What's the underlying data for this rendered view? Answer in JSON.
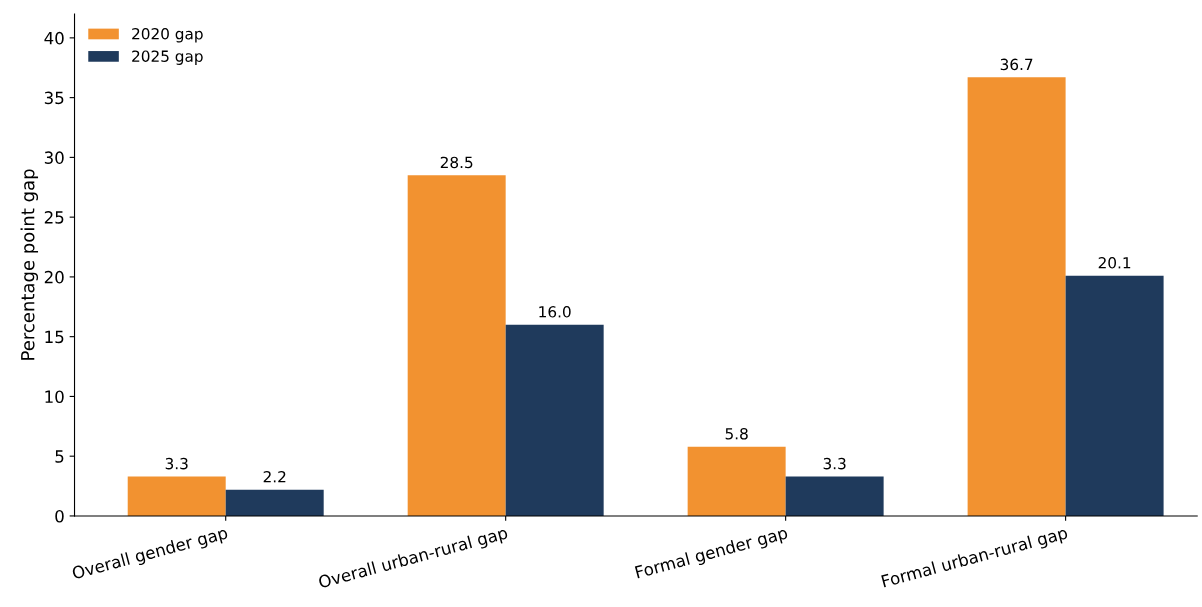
{
  "chart_data": {
    "type": "bar",
    "ylabel": "Percentage point gap",
    "categories": [
      "Overall gender gap",
      "Overall urban-rural gap",
      "Formal gender gap",
      "Formal urban-rural gap"
    ],
    "series": [
      {
        "name": "2020 gap",
        "color": "#f29230",
        "values": [
          3.3,
          28.5,
          5.8,
          36.7
        ],
        "value_labels": [
          "3.3",
          "28.5",
          "5.8",
          "36.7"
        ]
      },
      {
        "name": "2025 gap",
        "color": "#1f3a5c",
        "values": [
          2.2,
          16.0,
          3.3,
          20.1
        ],
        "value_labels": [
          "2.2",
          "16.0",
          "3.3",
          "20.1"
        ]
      }
    ],
    "ylim": [
      0,
      42
    ],
    "yticks": [
      0,
      5,
      10,
      15,
      20,
      25,
      30,
      35,
      40
    ],
    "legend": "top left",
    "grid": false
  }
}
